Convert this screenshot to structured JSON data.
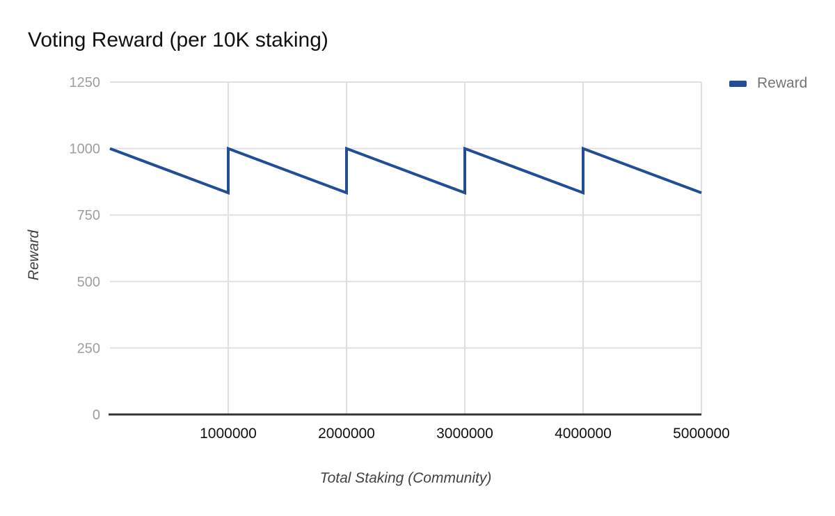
{
  "chart": {
    "title": "Voting Reward (per 10K staking)",
    "x_axis_title": "Total Staking (Community)",
    "y_axis_title": "Reward",
    "legend": {
      "label": "Reward"
    }
  },
  "colors": {
    "series": "#234e96",
    "grid": "#e0e0e0",
    "baseline": "#333333",
    "y_tick_text": "#9e9e9e",
    "x_tick_text": "#111111",
    "axis_title_text": "#424242",
    "legend_text": "#757575",
    "title_text": "#111111",
    "background": "#ffffff"
  },
  "chart_data": {
    "type": "line",
    "title": "Voting Reward (per 10K staking)",
    "xlabel": "Total Staking (Community)",
    "ylabel": "Reward",
    "legend_entries": [
      "Reward"
    ],
    "legend_position": "top-right",
    "grid": true,
    "xlim": [
      0,
      5000000
    ],
    "ylim": [
      0,
      1250
    ],
    "x_ticks": [
      1000000,
      2000000,
      3000000,
      4000000,
      5000000
    ],
    "x_tick_labels": [
      "1000000",
      "2000000",
      "3000000",
      "4000000",
      "5000000"
    ],
    "y_ticks": [
      0,
      250,
      500,
      750,
      1000,
      1250
    ],
    "y_tick_labels": [
      "0",
      "250",
      "500",
      "750",
      "1000",
      "1250"
    ],
    "series": [
      {
        "name": "Reward",
        "color": "#234e96",
        "points": [
          [
            0,
            1000
          ],
          [
            1000000,
            833.33
          ],
          [
            1000000,
            1000
          ],
          [
            2000000,
            833.33
          ],
          [
            2000000,
            1000
          ],
          [
            3000000,
            833.33
          ],
          [
            3000000,
            1000
          ],
          [
            4000000,
            833.33
          ],
          [
            4000000,
            1000
          ],
          [
            5000000,
            833.33
          ]
        ]
      }
    ]
  }
}
